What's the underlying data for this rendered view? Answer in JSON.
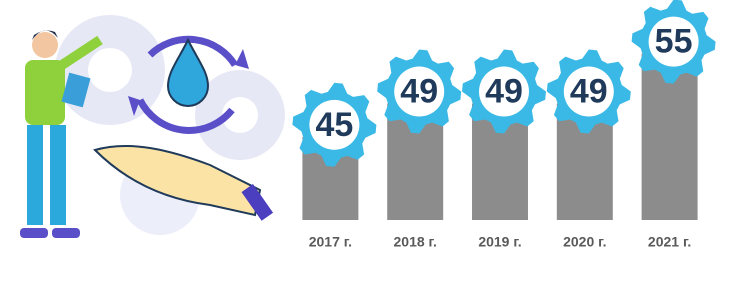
{
  "chart_data": {
    "type": "bar",
    "categories": [
      "2017 г.",
      "2018 г.",
      "2019 г.",
      "2020 г.",
      "2021 г."
    ],
    "values": [
      45,
      49,
      49,
      49,
      55
    ],
    "color": "#8c8c8c",
    "badge_color": "#3ab9e6",
    "ylim": [
      35,
      57
    ]
  }
}
